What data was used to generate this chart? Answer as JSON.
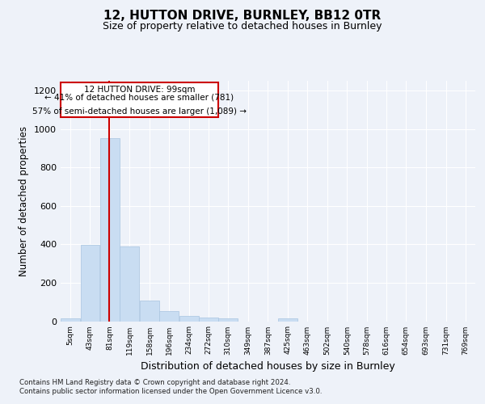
{
  "title1": "12, HUTTON DRIVE, BURNLEY, BB12 0TR",
  "title2": "Size of property relative to detached houses in Burnley",
  "xlabel": "Distribution of detached houses by size in Burnley",
  "ylabel": "Number of detached properties",
  "footnote1": "Contains HM Land Registry data © Crown copyright and database right 2024.",
  "footnote2": "Contains public sector information licensed under the Open Government Licence v3.0.",
  "annotation_line1": "12 HUTTON DRIVE: 99sqm",
  "annotation_line2": "← 41% of detached houses are smaller (781)",
  "annotation_line3": "57% of semi-detached houses are larger (1,089) →",
  "bar_color": "#c9ddf2",
  "bar_edge_color": "#a8c4e0",
  "ref_line_color": "#cc0000",
  "bin_starts": [
    5,
    43,
    81,
    119,
    158,
    196,
    234,
    272,
    310,
    349,
    387,
    425,
    463,
    502,
    540,
    578,
    616,
    654,
    693,
    731,
    769
  ],
  "bin_width": 38,
  "bar_heights": [
    15,
    395,
    950,
    390,
    108,
    52,
    27,
    18,
    14,
    0,
    0,
    13,
    0,
    0,
    0,
    0,
    0,
    0,
    0,
    0,
    0
  ],
  "ylim": [
    0,
    1250
  ],
  "yticks": [
    0,
    200,
    400,
    600,
    800,
    1000,
    1200
  ],
  "bg_color": "#eef2f9",
  "axes_bg_color": "#eef2f9"
}
